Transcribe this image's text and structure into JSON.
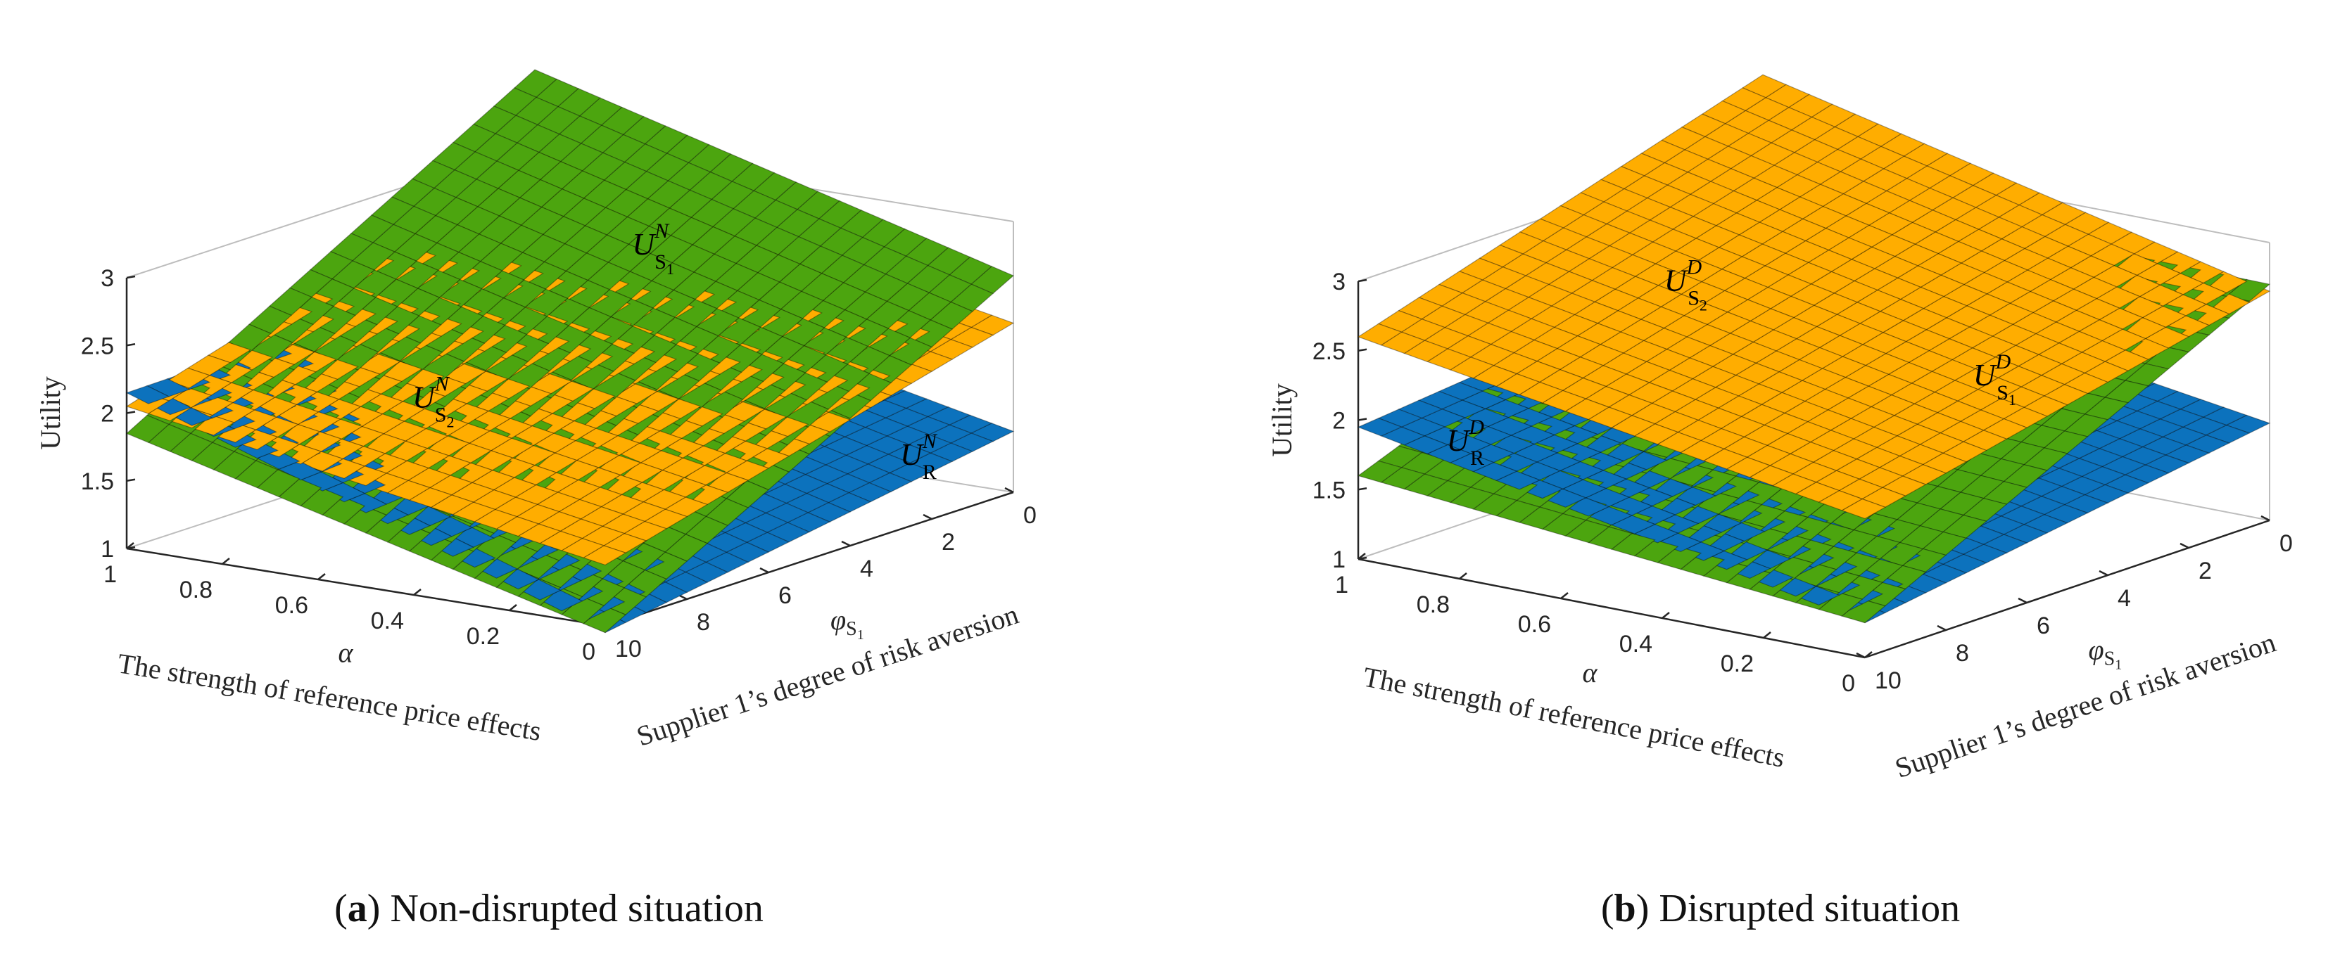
{
  "chart_data": [
    {
      "type": "surface",
      "panel": "a",
      "caption_letter": "a",
      "caption_text": "Non-disrupted situation",
      "zlabel": "Utility",
      "xlabel": "The strength of reference price effects",
      "xsym": "α",
      "ylabel": "Supplier 1’s degree of risk aversion",
      "ysym": "φ",
      "ysym_sub": "S",
      "ysym_subsub": "1",
      "xlim": [
        0,
        1
      ],
      "ylim": [
        0,
        10
      ],
      "zlim": [
        1,
        3
      ],
      "xticks": [
        "0",
        "0.2",
        "0.4",
        "0.6",
        "0.8",
        "1"
      ],
      "yticks": [
        "0",
        "2",
        "4",
        "6",
        "8",
        "10"
      ],
      "zticks": [
        "1",
        "1.5",
        "2",
        "2.5",
        "3"
      ],
      "series": [
        {
          "name": "U_S1^N",
          "label_main": "U",
          "label_sup": "N",
          "label_sub": "S",
          "label_subsub": "1",
          "color": "#4ca50f",
          "corners": {
            "a1_p0": 3.55,
            "a0_p0": 2.6,
            "a1_p10": 1.85,
            "a0_p10": 0.95
          },
          "label_at": [
            0.55,
            2.2
          ]
        },
        {
          "name": "U_S2^N",
          "label_main": "U",
          "label_sup": "N",
          "label_sub": "S",
          "label_subsub": "2",
          "color": "#ffad00",
          "corners": {
            "a1_p0": 2.95,
            "a0_p0": 2.25,
            "a1_p10": 2.05,
            "a0_p10": 1.45
          },
          "label_at": [
            0.6,
            7.0
          ]
        },
        {
          "name": "U_R^N",
          "label_main": "U",
          "label_sup": "N",
          "label_sub": "R",
          "color": "#0c72bd",
          "corners": {
            "a1_p0": 2.2,
            "a0_p0": 1.45,
            "a1_p10": 2.15,
            "a0_p10": 0.95
          },
          "label_at": [
            0.05,
            1.5
          ]
        }
      ]
    },
    {
      "type": "surface",
      "panel": "b",
      "caption_letter": "b",
      "caption_text": "Disrupted situation",
      "zlabel": "Utility",
      "xlabel": "The strength of reference price effects",
      "xsym": "α",
      "ylabel": "Supplier 1’s degree of risk aversion",
      "ysym": "φ",
      "ysym_sub": "S",
      "ysym_subsub": "1",
      "xlim": [
        0,
        1
      ],
      "ylim": [
        0,
        10
      ],
      "zlim": [
        1,
        3
      ],
      "xticks": [
        "0",
        "0.2",
        "0.4",
        "0.6",
        "0.8",
        "1"
      ],
      "yticks": [
        "0",
        "2",
        "4",
        "6",
        "8",
        "10"
      ],
      "zticks": [
        "1",
        "1.5",
        "2",
        "2.5",
        "3"
      ],
      "series": [
        {
          "name": "U_S1^D",
          "label_main": "U",
          "label_sup": "D",
          "label_sub": "S",
          "label_subsub": "1",
          "color": "#4ca50f",
          "corners": {
            "a1_p0": 2.75,
            "a0_p0": 2.7,
            "a1_p10": 1.6,
            "a0_p10": 1.25
          },
          "label_at": [
            0.25,
            3.5
          ]
        },
        {
          "name": "U_S2^D",
          "label_main": "U",
          "label_sup": "D",
          "label_sub": "S",
          "label_subsub": "2",
          "color": "#ffad00",
          "corners": {
            "a1_p0": 3.5,
            "a0_p0": 2.65,
            "a1_p10": 2.6,
            "a0_p10": 2.0
          },
          "label_at": [
            0.7,
            5.5
          ]
        },
        {
          "name": "U_R^D",
          "label_main": "U",
          "label_sup": "D",
          "label_sub": "R",
          "color": "#0c72bd",
          "corners": {
            "a1_p0": 2.25,
            "a0_p0": 1.7,
            "a1_p10": 1.95,
            "a0_p10": 1.25
          },
          "label_at": [
            0.85,
            9.0
          ]
        }
      ]
    }
  ]
}
